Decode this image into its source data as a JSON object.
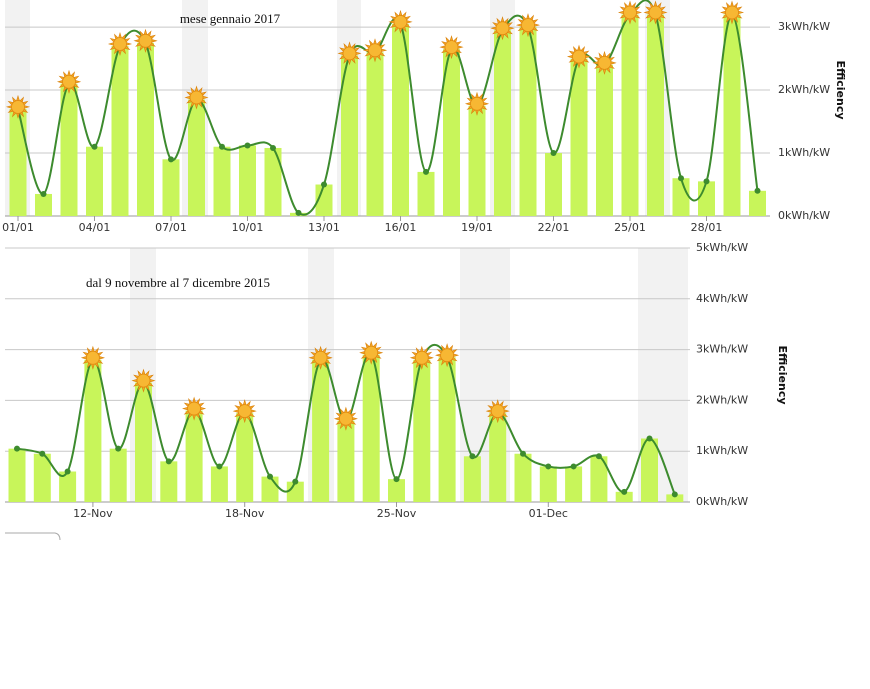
{
  "chart_data": [
    {
      "type": "bar",
      "title": "mese gennaio 2017",
      "y_label": "Efficiency",
      "categories": [
        "01/01",
        null,
        null,
        "04/01",
        null,
        null,
        "07/01",
        null,
        null,
        "10/01",
        null,
        null,
        "13/01",
        null,
        null,
        "16/01",
        null,
        null,
        "19/01",
        null,
        null,
        "22/01",
        null,
        null,
        "25/01",
        null,
        null,
        "28/01",
        null,
        null
      ],
      "values": [
        1.7,
        0.35,
        2.1,
        1.1,
        2.7,
        2.75,
        0.9,
        1.85,
        1.1,
        1.12,
        1.08,
        0.05,
        0.5,
        2.55,
        2.6,
        3.05,
        0.7,
        2.65,
        1.75,
        2.95,
        3.0,
        1.0,
        2.5,
        2.4,
        3.2,
        3.2,
        0.6,
        0.55,
        3.2,
        0.4
      ],
      "color": "#c8f55a",
      "line_color": "#3d8b2e",
      "ylim": [
        0,
        3.43
      ],
      "yticks": [
        {
          "value": 0,
          "label": "0kWh/kW"
        },
        {
          "value": 1,
          "label": "1kWh/kW"
        },
        {
          "value": 2,
          "label": "2kWh/kW"
        },
        {
          "value": 3,
          "label": "3kWh/kW"
        }
      ],
      "grid": true
    },
    {
      "type": "bar",
      "title": "dal 9 novembre al 7 dicembre 2015",
      "y_label": "Efficiency",
      "categories": [
        null,
        null,
        null,
        "12-Nov",
        null,
        null,
        null,
        null,
        null,
        "18-Nov",
        null,
        null,
        null,
        null,
        null,
        "25-Nov",
        null,
        null,
        null,
        null,
        null,
        "01-Dec",
        null,
        null,
        null,
        null,
        null
      ],
      "values": [
        1.05,
        0.95,
        0.6,
        2.8,
        1.05,
        2.35,
        0.8,
        1.8,
        0.7,
        1.75,
        0.5,
        0.4,
        2.8,
        1.6,
        2.9,
        0.45,
        2.8,
        2.85,
        0.9,
        1.75,
        0.95,
        0.7,
        0.7,
        0.9,
        0.2,
        1.25,
        0.15
      ],
      "color": "#c8f55a",
      "line_color": "#3d8b2e",
      "ylim": [
        0,
        5
      ],
      "yticks": [
        {
          "value": 0,
          "label": "0kWh/kW"
        },
        {
          "value": 1,
          "label": "1kWh/kW"
        },
        {
          "value": 2,
          "label": "2kWh/kW"
        },
        {
          "value": 3,
          "label": "3kWh/kW"
        },
        {
          "value": 4,
          "label": "4kWh/kW"
        },
        {
          "value": 5,
          "label": "5kWh/kW"
        }
      ],
      "grid": true
    }
  ]
}
